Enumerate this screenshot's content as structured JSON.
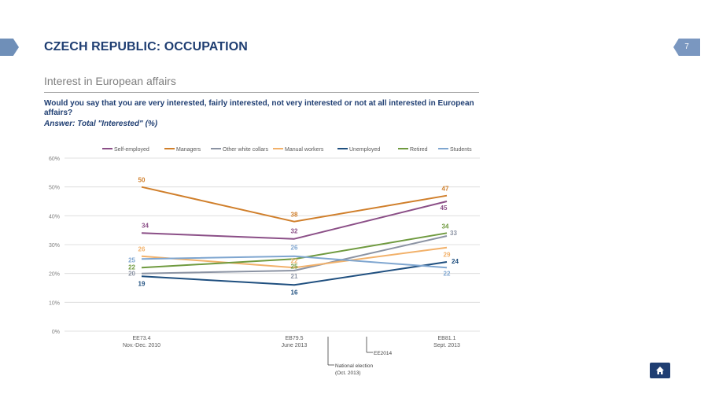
{
  "header": {
    "title": "CZECH REPUBLIC: OCCUPATION",
    "page_number": "7"
  },
  "subtitle": "Interest in European affairs",
  "question": "Would you say that you are very interested, fairly interested, not very interested or not at all interested in European affairs?",
  "answer": "Answer: Total \"Interested\" (%)",
  "colors": {
    "title": "#1f3e72",
    "accent": "#7a97c0"
  },
  "icons": {
    "home": "home-icon"
  },
  "chart_data": {
    "type": "line",
    "ylim": [
      0,
      60
    ],
    "yticks": [
      "0%",
      "10%",
      "20%",
      "30%",
      "40%",
      "50%",
      "60%"
    ],
    "categories": [
      {
        "line1": "EE73.4",
        "line2": "Nov.-Dec. 2010"
      },
      {
        "line1": "EB79.5",
        "line2": "June 2013"
      },
      {
        "line1": "EB81.1",
        "line2": "Sept. 2013"
      }
    ],
    "series": [
      {
        "name": "Self-employed",
        "color": "#8b4f87",
        "values": [
          34,
          32,
          45
        ]
      },
      {
        "name": "Managers",
        "color": "#d07f2b",
        "values": [
          50,
          38,
          47
        ]
      },
      {
        "name": "Other white collars",
        "color": "#8b93a3",
        "values": [
          20,
          21,
          33
        ]
      },
      {
        "name": "Manual workers",
        "color": "#f2b16a",
        "values": [
          26,
          22,
          29
        ]
      },
      {
        "name": "Unemployed",
        "color": "#1f4f7f",
        "values": [
          19,
          16,
          24
        ]
      },
      {
        "name": "Retired",
        "color": "#6f9a3f",
        "values": [
          22,
          25,
          34
        ]
      },
      {
        "name": "Students",
        "color": "#7fa6d0",
        "values": [
          25,
          26,
          22
        ]
      }
    ],
    "annotations": [
      {
        "line1": "EE2014",
        "line2": ""
      },
      {
        "line1": "National election",
        "line2": "(Oct. 2013)"
      }
    ]
  }
}
